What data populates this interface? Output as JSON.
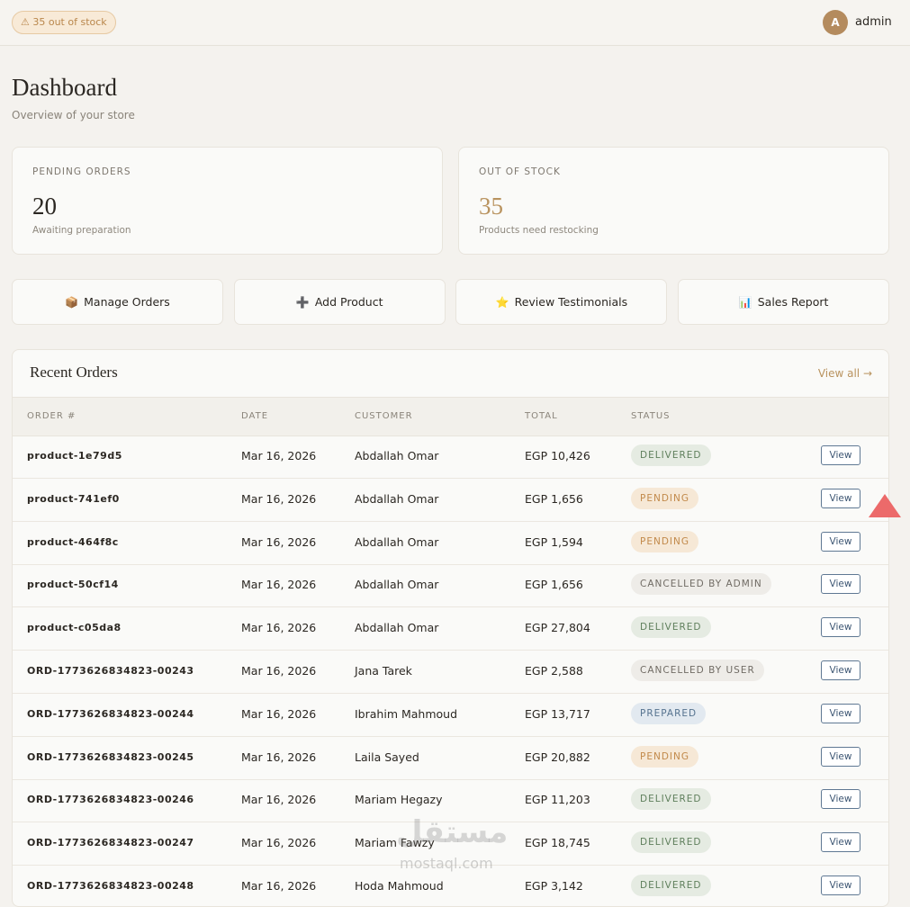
{
  "header": {
    "badge": "⚠ 35 out of stock",
    "avatar": "A",
    "user": "admin"
  },
  "page": {
    "title": "Dashboard",
    "subtitle": "Overview of your store"
  },
  "stats": [
    {
      "label": "PENDING ORDERS",
      "value": 20,
      "note": "Awaiting preparation"
    },
    {
      "label": "OUT OF STOCK",
      "value": 35,
      "note": "Products need restocking"
    }
  ],
  "actions": [
    {
      "icon": "📦",
      "label": "Manage Orders"
    },
    {
      "icon": "➕",
      "label": "Add Product"
    },
    {
      "icon": "⭐",
      "label": "Review Testimonials"
    },
    {
      "icon": "📊",
      "label": "Sales Report"
    }
  ],
  "recent": {
    "title": "Recent Orders",
    "view_all": "View all →",
    "columns": [
      "ORDER #",
      "DATE",
      "CUSTOMER",
      "TOTAL",
      "STATUS"
    ],
    "rows": [
      [
        "product-1e79d5",
        "Mar 16, 2026",
        "Abdallah Omar",
        "EGP 10,426",
        "DELIVERED",
        "View"
      ],
      [
        "product-741ef0",
        "Mar 16, 2026",
        "Abdallah Omar",
        "EGP 1,656",
        "PENDING",
        "View"
      ],
      [
        "product-464f8c",
        "Mar 16, 2026",
        "Abdallah Omar",
        "EGP 1,594",
        "PENDING",
        "View"
      ],
      [
        "product-50cf14",
        "Mar 16, 2026",
        "Abdallah Omar",
        "EGP 1,656",
        "CANCELLED BY ADMIN",
        "View"
      ],
      [
        "product-c05da8",
        "Mar 16, 2026",
        "Abdallah Omar",
        "EGP 27,804",
        "DELIVERED",
        "View"
      ],
      [
        "ORD-1773626834823-00243",
        "Mar 16, 2026",
        "Jana Tarek",
        "EGP 2,588",
        "CANCELLED BY USER",
        "View"
      ],
      [
        "ORD-1773626834823-00244",
        "Mar 16, 2026",
        "Ibrahim Mahmoud",
        "EGP 13,717",
        "PREPARED",
        "View"
      ],
      [
        "ORD-1773626834823-00245",
        "Mar 16, 2026",
        "Laila Sayed",
        "EGP 20,882",
        "PENDING",
        "View"
      ],
      [
        "ORD-1773626834823-00246",
        "Mar 16, 2026",
        "Mariam Hegazy",
        "EGP 11,203",
        "DELIVERED",
        "View"
      ],
      [
        "ORD-1773626834823-00247",
        "Mar 16, 2026",
        "Mariam Fawzy",
        "EGP 18,745",
        "DELIVERED",
        "View"
      ],
      [
        "ORD-1773626834823-00248",
        "Mar 16, 2026",
        "Hoda Mahmoud",
        "EGP 3,142",
        "DELIVERED",
        "View"
      ]
    ]
  },
  "watermark": [
    "مستقل",
    "mostaql.com"
  ]
}
